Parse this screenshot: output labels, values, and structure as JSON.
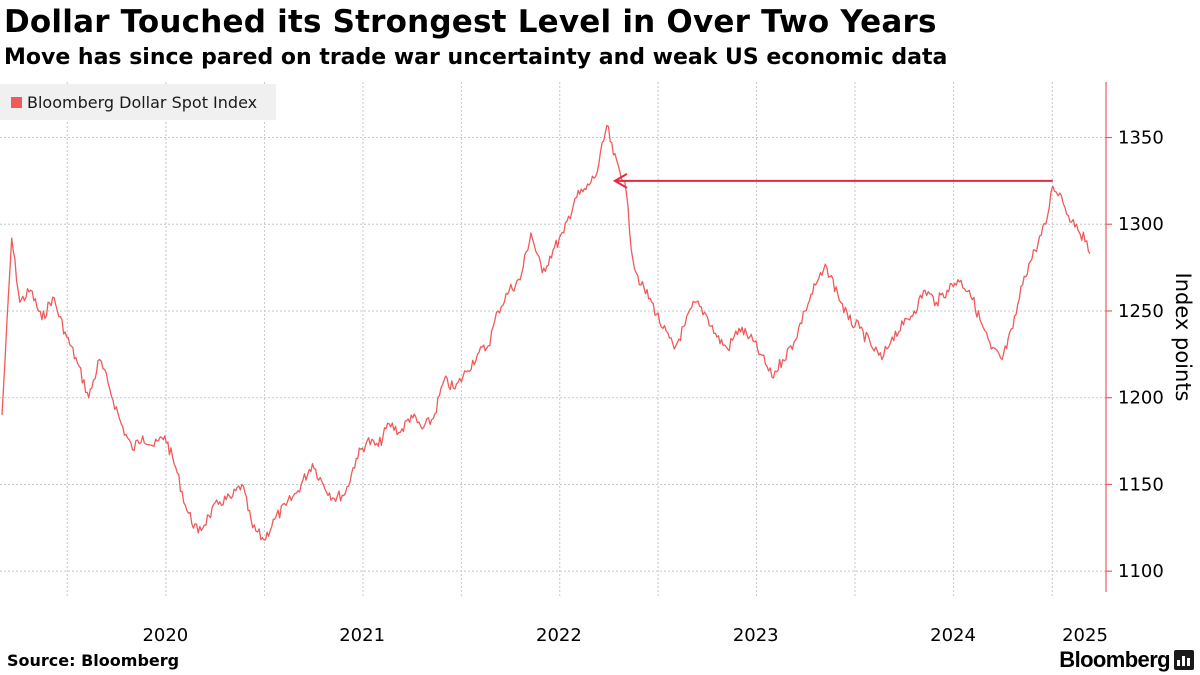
{
  "header": {
    "title": "Dollar Touched its Strongest Level in Over Two Years",
    "subtitle": "Move has since pared on trade war uncertainty and weak US economic data"
  },
  "footer": {
    "source": "Source: Bloomberg",
    "brand": "Bloomberg"
  },
  "colors": {
    "series": "#f05a5a",
    "axis": "#f05a5a",
    "annotation_arrow": "#e8283c",
    "grid": "#c8c8c8",
    "legend_bg": "#f0f0f0"
  },
  "icons": {
    "brand": "bloomberg-terminal-icon"
  },
  "chart_data": {
    "type": "line",
    "title": "Dollar Touched its Strongest Level in Over Two Years",
    "subtitle": "Move has since pared on trade war uncertainty and weak US economic data",
    "xlabel": "",
    "ylabel": "Index points",
    "y_axis_side": "right",
    "ylim": [
      1088,
      1382
    ],
    "xlim": [
      "2019-09-02",
      "2025-03-12"
    ],
    "yticks": [
      1100,
      1150,
      1200,
      1250,
      1300,
      1350
    ],
    "xticks": [
      {
        "label": "2020",
        "at": "2020-01-01"
      },
      {
        "label": "2021",
        "at": "2021-01-01"
      },
      {
        "label": "2022",
        "at": "2022-01-01"
      },
      {
        "label": "2023",
        "at": "2023-01-01"
      },
      {
        "label": "2024",
        "at": "2024-01-01"
      },
      {
        "label": "2025",
        "at": "2025-01-01"
      }
    ],
    "grid": true,
    "legend_position": "top-left",
    "annotation": {
      "type": "arrow",
      "from": {
        "x": "2025-01-02",
        "y": 1325
      },
      "to": {
        "x": "2022-09-28",
        "y": 1325
      }
    },
    "series": [
      {
        "name": "Bloomberg Dollar Spot Index",
        "points": [
          [
            "2019-09-02",
            1190
          ],
          [
            "2019-09-20",
            1292
          ],
          [
            "2019-10-05",
            1255
          ],
          [
            "2019-10-25",
            1262
          ],
          [
            "2019-11-15",
            1245
          ],
          [
            "2019-12-05",
            1258
          ],
          [
            "2019-12-31",
            1235
          ],
          [
            "2020-01-20",
            1220
          ],
          [
            "2020-02-10",
            1200
          ],
          [
            "2020-03-01",
            1222
          ],
          [
            "2020-03-20",
            1205
          ],
          [
            "2020-04-10",
            1185
          ],
          [
            "2020-05-01",
            1170
          ],
          [
            "2020-05-20",
            1178
          ],
          [
            "2020-06-10",
            1172
          ],
          [
            "2020-06-30",
            1178
          ],
          [
            "2020-07-20",
            1160
          ],
          [
            "2020-08-10",
            1135
          ],
          [
            "2020-08-31",
            1122
          ],
          [
            "2020-09-20",
            1132
          ],
          [
            "2020-10-10",
            1140
          ],
          [
            "2020-10-31",
            1142
          ],
          [
            "2020-11-20",
            1150
          ],
          [
            "2020-12-10",
            1125
          ],
          [
            "2020-12-31",
            1118
          ],
          [
            "2021-01-20",
            1130
          ],
          [
            "2021-02-10",
            1138
          ],
          [
            "2021-03-01",
            1145
          ],
          [
            "2021-03-31",
            1162
          ],
          [
            "2021-04-20",
            1150
          ],
          [
            "2021-05-10",
            1142
          ],
          [
            "2021-05-31",
            1145
          ],
          [
            "2021-06-20",
            1165
          ],
          [
            "2021-07-10",
            1175
          ],
          [
            "2021-07-31",
            1172
          ],
          [
            "2021-08-20",
            1185
          ],
          [
            "2021-09-10",
            1180
          ],
          [
            "2021-09-30",
            1190
          ],
          [
            "2021-10-20",
            1182
          ],
          [
            "2021-11-10",
            1188
          ],
          [
            "2021-11-30",
            1210
          ],
          [
            "2021-12-20",
            1205
          ],
          [
            "2022-01-10",
            1215
          ],
          [
            "2022-01-31",
            1225
          ],
          [
            "2022-02-20",
            1230
          ],
          [
            "2022-03-10",
            1250
          ],
          [
            "2022-03-31",
            1262
          ],
          [
            "2022-04-20",
            1268
          ],
          [
            "2022-05-10",
            1295
          ],
          [
            "2022-05-31",
            1272
          ],
          [
            "2022-06-20",
            1285
          ],
          [
            "2022-07-10",
            1295
          ],
          [
            "2022-07-31",
            1315
          ],
          [
            "2022-08-20",
            1320
          ],
          [
            "2022-09-10",
            1330
          ],
          [
            "2022-09-28",
            1357
          ],
          [
            "2022-10-10",
            1340
          ],
          [
            "2022-10-31",
            1325
          ],
          [
            "2022-11-15",
            1280
          ],
          [
            "2022-11-30",
            1265
          ],
          [
            "2022-12-20",
            1255
          ],
          [
            "2023-01-10",
            1240
          ],
          [
            "2023-01-31",
            1228
          ],
          [
            "2023-02-20",
            1242
          ],
          [
            "2023-03-10",
            1255
          ],
          [
            "2023-03-31",
            1248
          ],
          [
            "2023-04-20",
            1235
          ],
          [
            "2023-05-10",
            1228
          ],
          [
            "2023-05-31",
            1240
          ],
          [
            "2023-06-20",
            1235
          ],
          [
            "2023-07-10",
            1225
          ],
          [
            "2023-07-31",
            1212
          ],
          [
            "2023-08-20",
            1222
          ],
          [
            "2023-09-10",
            1232
          ],
          [
            "2023-09-30",
            1250
          ],
          [
            "2023-10-20",
            1265
          ],
          [
            "2023-11-10",
            1275
          ],
          [
            "2023-11-30",
            1260
          ],
          [
            "2023-12-20",
            1245
          ],
          [
            "2024-01-10",
            1240
          ],
          [
            "2024-01-31",
            1230
          ],
          [
            "2024-02-20",
            1222
          ],
          [
            "2024-03-10",
            1235
          ],
          [
            "2024-03-31",
            1242
          ],
          [
            "2024-04-20",
            1250
          ],
          [
            "2024-05-10",
            1262
          ],
          [
            "2024-05-31",
            1255
          ],
          [
            "2024-06-20",
            1262
          ],
          [
            "2024-07-10",
            1268
          ],
          [
            "2024-07-31",
            1262
          ],
          [
            "2024-08-20",
            1245
          ],
          [
            "2024-09-10",
            1228
          ],
          [
            "2024-09-30",
            1222
          ],
          [
            "2024-10-20",
            1240
          ],
          [
            "2024-11-10",
            1270
          ],
          [
            "2024-11-30",
            1285
          ],
          [
            "2024-12-20",
            1300
          ],
          [
            "2025-01-02",
            1322
          ],
          [
            "2025-01-15",
            1318
          ],
          [
            "2025-01-31",
            1305
          ],
          [
            "2025-02-15",
            1300
          ],
          [
            "2025-03-03",
            1290
          ],
          [
            "2025-03-12",
            1283
          ]
        ]
      }
    ]
  }
}
